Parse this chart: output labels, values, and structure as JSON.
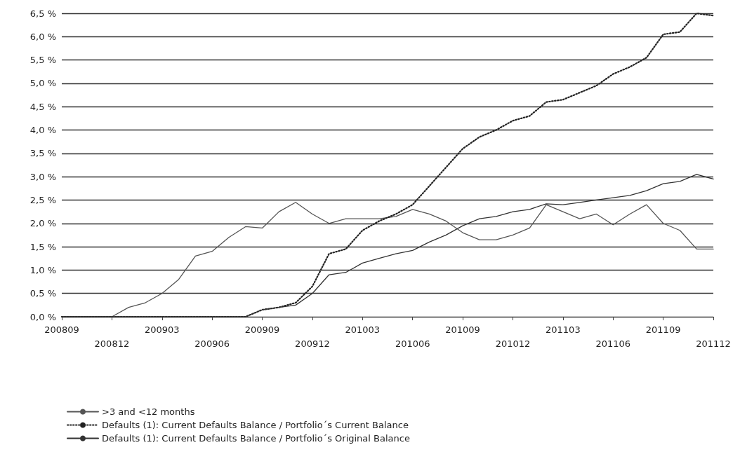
{
  "chart_data": {
    "type": "line",
    "categories": [
      "200809",
      null,
      null,
      "200812",
      null,
      null,
      "200903",
      null,
      null,
      "200906",
      null,
      null,
      "200909",
      null,
      null,
      "200912",
      null,
      null,
      "201003",
      null,
      null,
      "201006",
      null,
      null,
      "201009",
      null,
      null,
      "201012",
      null,
      null,
      "201103",
      null,
      null,
      "201106",
      null,
      null,
      "201109",
      null,
      null,
      "201112"
    ],
    "series": [
      {
        "name": ">3 and <12 months",
        "color": "#555555",
        "line_style": "solid",
        "values": [
          0,
          0,
          0,
          0,
          0.2,
          0.3,
          0.5,
          0.8,
          1.3,
          1.4,
          1.7,
          1.93,
          1.9,
          2.25,
          2.45,
          2.2,
          2.0,
          2.1,
          2.1,
          2.1,
          2.15,
          2.3,
          2.2,
          2.05,
          1.8,
          1.65,
          1.65,
          1.75,
          1.9,
          2.4,
          2.25,
          2.1,
          2.2,
          1.97,
          2.2,
          2.4,
          2.0,
          1.85,
          1.45,
          1.45
        ]
      },
      {
        "name": "Defaults (1): Current Defaults Balance / Portfolio´s Current Balance",
        "color": "#222222",
        "line_style": "dotted",
        "values": [
          0,
          0,
          0,
          0,
          0,
          0,
          0,
          0,
          0,
          0,
          0,
          0,
          0.15,
          0.2,
          0.3,
          0.65,
          1.35,
          1.45,
          1.85,
          2.05,
          2.2,
          2.4,
          2.8,
          3.2,
          3.6,
          3.85,
          4.0,
          4.2,
          4.3,
          4.6,
          4.65,
          4.8,
          4.95,
          5.2,
          5.35,
          5.55,
          6.05,
          6.1,
          6.5,
          6.45
        ]
      },
      {
        "name": "Defaults (1): Current Defaults Balance / Portfolio´s Original Balance",
        "color": "#333333",
        "line_style": "solid",
        "values": [
          0,
          0,
          0,
          0,
          0,
          0,
          0,
          0,
          0,
          0,
          0,
          0,
          0.15,
          0.2,
          0.25,
          0.5,
          0.9,
          0.95,
          1.15,
          1.25,
          1.35,
          1.42,
          1.6,
          1.75,
          1.95,
          2.1,
          2.15,
          2.25,
          2.3,
          2.42,
          2.4,
          2.45,
          2.5,
          2.55,
          2.6,
          2.7,
          2.85,
          2.9,
          3.05,
          2.95
        ]
      }
    ],
    "ylim": [
      0,
      6.5
    ],
    "yticks": [
      {
        "value": 0,
        "label": "0,0 %"
      },
      {
        "value": 0.5,
        "label": "0,5 %"
      },
      {
        "value": 1,
        "label": "1,0 %"
      },
      {
        "value": 1.5,
        "label": "1,5 %"
      },
      {
        "value": 2,
        "label": "2,0 %"
      },
      {
        "value": 2.5,
        "label": "2,5 %"
      },
      {
        "value": 3,
        "label": "3,0 %"
      },
      {
        "value": 3.5,
        "label": "3,5 %"
      },
      {
        "value": 4,
        "label": "4,0 %"
      },
      {
        "value": 4.5,
        "label": "4,5 %"
      },
      {
        "value": 5,
        "label": "5,0 %"
      },
      {
        "value": 5.5,
        "label": "5,5 %"
      },
      {
        "value": 6,
        "label": "6,0 %"
      },
      {
        "value": 6.5,
        "label": "6,5 %"
      }
    ],
    "grid": "y",
    "legend": "bottom left",
    "marker": "none"
  }
}
